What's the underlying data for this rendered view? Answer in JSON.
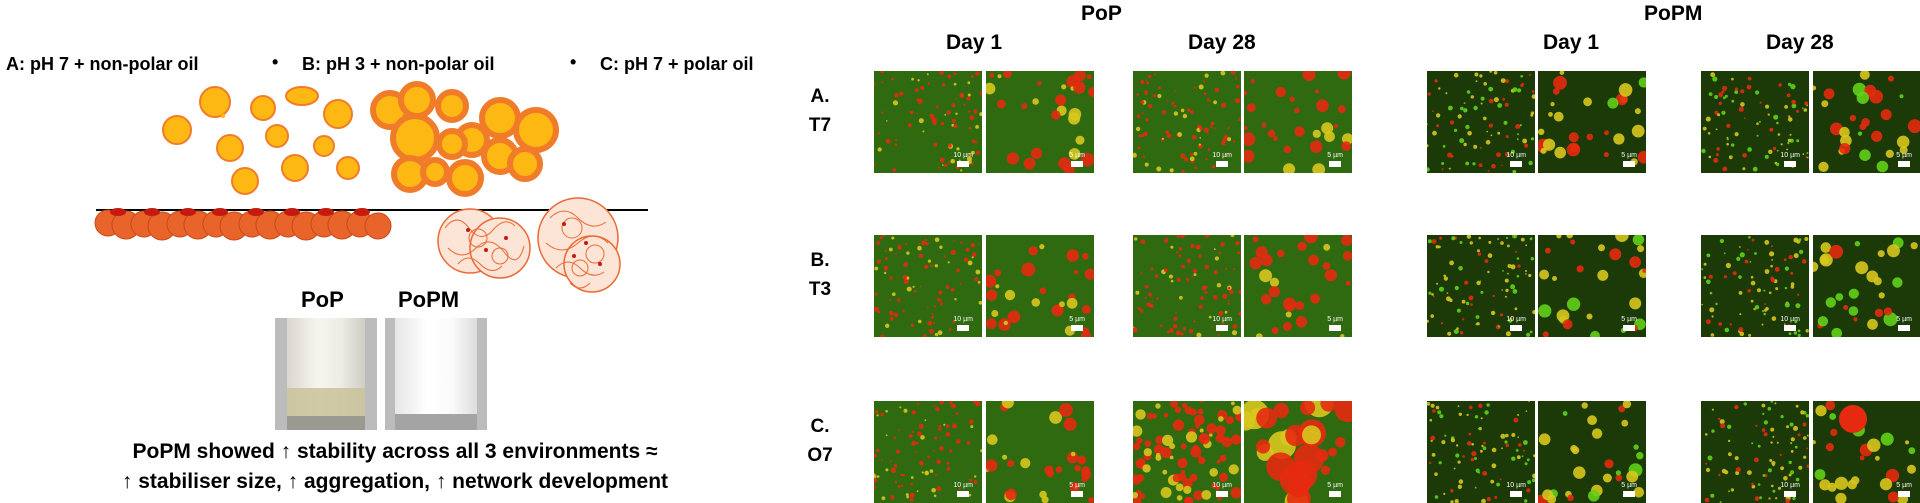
{
  "legend": {
    "a": "A:  pH 7 + non-polar oil",
    "b": "B:  pH 3 + non-polar oil",
    "c": "C:  pH 7 + polar oil",
    "sep": "•"
  },
  "vials": {
    "left": "PoP",
    "right": "PoPM"
  },
  "caption": {
    "line1": "PoPM showed ↑ stability across all 3 environments ≈",
    "line2": "↑ stabiliser size, ↑ aggregation, ↑ network development"
  },
  "groups": {
    "pop": "PoP",
    "popm": "PoPM"
  },
  "days": {
    "d1": "Day 1",
    "d28": "Day 28"
  },
  "rows": [
    {
      "letter": "A.",
      "code": "T7"
    },
    {
      "letter": "B.",
      "code": "T3"
    },
    {
      "letter": "C.",
      "code": "O7"
    }
  ],
  "scale": {
    "low_mag": "10 µm",
    "high_mag": "5 µm"
  },
  "colors": {
    "droplet_fill": "#fdb813",
    "droplet_edge": "#f07c2a",
    "particle": "#e8642a",
    "micro_bg": "#2f6a10",
    "micro_red": "#e62a10",
    "micro_green": "#62d21a",
    "micro_yellow": "#d8c61e"
  }
}
